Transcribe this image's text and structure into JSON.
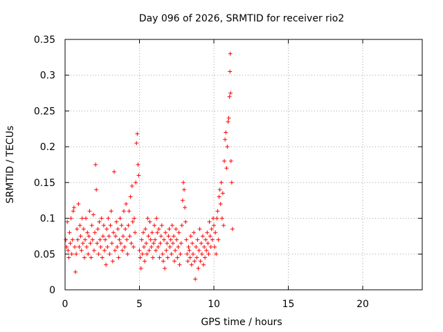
{
  "chart_data": {
    "type": "scatter",
    "title": "Day 096 of 2026, SRMTID for receiver rio2",
    "xlabel": "GPS time / hours",
    "ylabel": "SRMTID / TECUs",
    "xlim": [
      0,
      24
    ],
    "ylim": [
      0,
      0.35
    ],
    "xticks": [
      0,
      5,
      10,
      15,
      20
    ],
    "xtick_labels": [
      "0",
      "5",
      "10",
      "15",
      "20"
    ],
    "yticks": [
      0,
      0.05,
      0.1,
      0.15,
      0.2,
      0.25,
      0.3,
      0.35
    ],
    "ytick_labels": [
      "0",
      "0.05",
      "0.1",
      "0.15",
      "0.2",
      "0.25",
      "0.3",
      "0.35"
    ],
    "grid": true,
    "marker": "+",
    "series": [
      {
        "name": "SRMTID",
        "color": "#ff0000",
        "points": [
          [
            0.05,
            0.07
          ],
          [
            0.1,
            0.06
          ],
          [
            0.15,
            0.095
          ],
          [
            0.2,
            0.055
          ],
          [
            0.25,
            0.045
          ],
          [
            0.3,
            0.08
          ],
          [
            0.35,
            0.065
          ],
          [
            0.4,
            0.1
          ],
          [
            0.45,
            0.05
          ],
          [
            0.5,
            0.07
          ],
          [
            0.55,
            0.11
          ],
          [
            0.6,
            0.115
          ],
          [
            0.65,
            0.06
          ],
          [
            0.7,
            0.025
          ],
          [
            0.75,
            0.05
          ],
          [
            0.8,
            0.085
          ],
          [
            0.85,
            0.07
          ],
          [
            0.9,
            0.12
          ],
          [
            0.95,
            0.06
          ],
          [
            1.0,
            0.09
          ],
          [
            1.05,
            0.075
          ],
          [
            1.1,
            0.055
          ],
          [
            1.15,
            0.1
          ],
          [
            1.2,
            0.065
          ],
          [
            1.25,
            0.085
          ],
          [
            1.3,
            0.045
          ],
          [
            1.35,
            0.07
          ],
          [
            1.4,
            0.1
          ],
          [
            1.45,
            0.06
          ],
          [
            1.5,
            0.08
          ],
          [
            1.55,
            0.05
          ],
          [
            1.6,
            0.075
          ],
          [
            1.65,
            0.11
          ],
          [
            1.7,
            0.065
          ],
          [
            1.75,
            0.045
          ],
          [
            1.8,
            0.09
          ],
          [
            1.85,
            0.07
          ],
          [
            1.9,
            0.105
          ],
          [
            1.95,
            0.055
          ],
          [
            2.0,
            0.08
          ],
          [
            2.05,
            0.175
          ],
          [
            2.1,
            0.14
          ],
          [
            2.15,
            0.065
          ],
          [
            2.2,
            0.085
          ],
          [
            2.25,
            0.05
          ],
          [
            2.3,
            0.095
          ],
          [
            2.35,
            0.07
          ],
          [
            2.4,
            0.06
          ],
          [
            2.45,
            0.1
          ],
          [
            2.5,
            0.045
          ],
          [
            2.55,
            0.075
          ],
          [
            2.6,
            0.09
          ],
          [
            2.65,
            0.055
          ],
          [
            2.7,
            0.07
          ],
          [
            2.75,
            0.035
          ],
          [
            2.8,
            0.085
          ],
          [
            2.85,
            0.06
          ],
          [
            2.9,
            0.1
          ],
          [
            2.95,
            0.075
          ],
          [
            3.0,
            0.05
          ],
          [
            3.05,
            0.09
          ],
          [
            3.1,
            0.11
          ],
          [
            3.15,
            0.065
          ],
          [
            3.2,
            0.04
          ],
          [
            3.25,
            0.08
          ],
          [
            3.3,
            0.165
          ],
          [
            3.35,
            0.055
          ],
          [
            3.4,
            0.075
          ],
          [
            3.45,
            0.095
          ],
          [
            3.5,
            0.06
          ],
          [
            3.55,
            0.085
          ],
          [
            3.6,
            0.045
          ],
          [
            3.65,
            0.07
          ],
          [
            3.7,
            0.1
          ],
          [
            3.75,
            0.065
          ],
          [
            3.8,
            0.09
          ],
          [
            3.85,
            0.055
          ],
          [
            3.9,
            0.075
          ],
          [
            3.95,
            0.11
          ],
          [
            4.0,
            0.06
          ],
          [
            4.05,
            0.085
          ],
          [
            4.1,
            0.12
          ],
          [
            4.15,
            0.07
          ],
          [
            4.2,
            0.05
          ],
          [
            4.25,
            0.09
          ],
          [
            4.3,
            0.11
          ],
          [
            4.35,
            0.075
          ],
          [
            4.4,
            0.13
          ],
          [
            4.45,
            0.065
          ],
          [
            4.5,
            0.145
          ],
          [
            4.55,
            0.095
          ],
          [
            4.6,
            0.06
          ],
          [
            4.65,
            0.1
          ],
          [
            4.7,
            0.08
          ],
          [
            4.75,
            0.15
          ],
          [
            4.8,
            0.205
          ],
          [
            4.85,
            0.218
          ],
          [
            4.9,
            0.175
          ],
          [
            4.95,
            0.16
          ],
          [
            5.0,
            0.055
          ],
          [
            5.05,
            0.045
          ],
          [
            5.1,
            0.03
          ],
          [
            5.15,
            0.07
          ],
          [
            5.2,
            0.05
          ],
          [
            5.25,
            0.08
          ],
          [
            5.3,
            0.06
          ],
          [
            5.35,
            0.04
          ],
          [
            5.4,
            0.085
          ],
          [
            5.45,
            0.065
          ],
          [
            5.5,
            0.05
          ],
          [
            5.55,
            0.1
          ],
          [
            5.6,
            0.075
          ],
          [
            5.65,
            0.055
          ],
          [
            5.7,
            0.095
          ],
          [
            5.75,
            0.07
          ],
          [
            5.8,
            0.06
          ],
          [
            5.85,
            0.08
          ],
          [
            5.9,
            0.045
          ],
          [
            5.95,
            0.065
          ],
          [
            6.0,
            0.09
          ],
          [
            6.05,
            0.07
          ],
          [
            6.1,
            0.055
          ],
          [
            6.15,
            0.1
          ],
          [
            6.2,
            0.08
          ],
          [
            6.25,
            0.06
          ],
          [
            6.3,
            0.085
          ],
          [
            6.35,
            0.045
          ],
          [
            6.4,
            0.065
          ],
          [
            6.45,
            0.075
          ],
          [
            6.5,
            0.09
          ],
          [
            6.55,
            0.05
          ],
          [
            6.6,
            0.04
          ],
          [
            6.65,
            0.07
          ],
          [
            6.7,
            0.03
          ],
          [
            6.75,
            0.08
          ],
          [
            6.8,
            0.055
          ],
          [
            6.85,
            0.065
          ],
          [
            6.9,
            0.045
          ],
          [
            6.95,
            0.075
          ],
          [
            7.0,
            0.085
          ],
          [
            7.05,
            0.06
          ],
          [
            7.1,
            0.07
          ],
          [
            7.15,
            0.05
          ],
          [
            7.2,
            0.09
          ],
          [
            7.25,
            0.065
          ],
          [
            7.3,
            0.075
          ],
          [
            7.35,
            0.04
          ],
          [
            7.4,
            0.055
          ],
          [
            7.45,
            0.085
          ],
          [
            7.5,
            0.07
          ],
          [
            7.55,
            0.045
          ],
          [
            7.6,
            0.06
          ],
          [
            7.65,
            0.08
          ],
          [
            7.7,
            0.035
          ],
          [
            7.75,
            0.05
          ],
          [
            7.8,
            0.065
          ],
          [
            7.85,
            0.09
          ],
          [
            7.9,
            0.125
          ],
          [
            7.95,
            0.15
          ],
          [
            8.0,
            0.14
          ],
          [
            8.05,
            0.115
          ],
          [
            8.1,
            0.095
          ],
          [
            8.15,
            0.07
          ],
          [
            8.2,
            0.05
          ],
          [
            8.25,
            0.04
          ],
          [
            8.3,
            0.06
          ],
          [
            8.35,
            0.055
          ],
          [
            8.4,
            0.045
          ],
          [
            8.45,
            0.075
          ],
          [
            8.5,
            0.035
          ],
          [
            8.55,
            0.065
          ],
          [
            8.6,
            0.05
          ],
          [
            8.65,
            0.08
          ],
          [
            8.7,
            0.04
          ],
          [
            8.75,
            0.015
          ],
          [
            8.8,
            0.06
          ],
          [
            8.85,
            0.045
          ],
          [
            8.9,
            0.07
          ],
          [
            8.95,
            0.03
          ],
          [
            9.0,
            0.055
          ],
          [
            9.05,
            0.085
          ],
          [
            9.1,
            0.04
          ],
          [
            9.15,
            0.065
          ],
          [
            9.2,
            0.05
          ],
          [
            9.25,
            0.075
          ],
          [
            9.3,
            0.035
          ],
          [
            9.35,
            0.06
          ],
          [
            9.4,
            0.045
          ],
          [
            9.45,
            0.07
          ],
          [
            9.5,
            0.055
          ],
          [
            9.55,
            0.08
          ],
          [
            9.6,
            0.065
          ],
          [
            9.65,
            0.05
          ],
          [
            9.7,
            0.095
          ],
          [
            9.75,
            0.075
          ],
          [
            9.8,
            0.06
          ],
          [
            9.85,
            0.085
          ],
          [
            9.9,
            0.07
          ],
          [
            9.95,
            0.1
          ],
          [
            10.0,
            0.09
          ],
          [
            10.05,
            0.06
          ],
          [
            10.1,
            0.08
          ],
          [
            10.15,
            0.05
          ],
          [
            10.2,
            0.1
          ],
          [
            10.25,
            0.11
          ],
          [
            10.3,
            0.07
          ],
          [
            10.35,
            0.13
          ],
          [
            10.4,
            0.14
          ],
          [
            10.45,
            0.12
          ],
          [
            10.5,
            0.15
          ],
          [
            10.55,
            0.1
          ],
          [
            10.6,
            0.135
          ],
          [
            10.65,
            0.09
          ],
          [
            10.7,
            0.18
          ],
          [
            10.75,
            0.21
          ],
          [
            10.8,
            0.22
          ],
          [
            10.85,
            0.17
          ],
          [
            10.9,
            0.2
          ],
          [
            10.95,
            0.235
          ],
          [
            11.0,
            0.24
          ],
          [
            11.05,
            0.27
          ],
          [
            11.08,
            0.305
          ],
          [
            11.1,
            0.33
          ],
          [
            11.12,
            0.275
          ],
          [
            11.15,
            0.18
          ],
          [
            11.2,
            0.15
          ],
          [
            11.25,
            0.085
          ]
        ]
      }
    ]
  }
}
